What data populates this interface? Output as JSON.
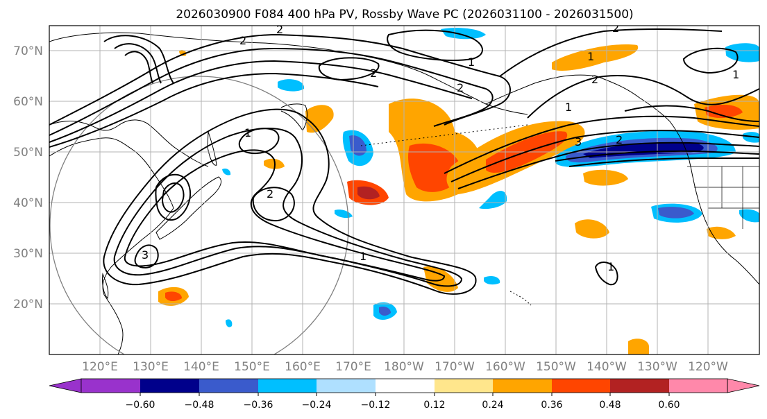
{
  "title": "2026030900 F084 400 hPa PV, Rossby Wave PC (2026031100 - 2026031500)",
  "lat_labels": [
    "70°N",
    "60°N",
    "50°N",
    "40°N",
    "30°N",
    "20°N"
  ],
  "lon_labels": [
    "120°E",
    "130°E",
    "140°E",
    "150°E",
    "160°E",
    "170°E",
    "180°W",
    "170°W",
    "160°W",
    "150°W",
    "140°W",
    "130°W",
    "120°W"
  ],
  "colorbar": {
    "ticks": [
      "−0.60",
      "−0.48",
      "−0.36",
      "−0.24",
      "−0.12",
      "0.12",
      "0.24",
      "0.36",
      "0.48",
      "0.60"
    ],
    "colors": [
      "#9932cc",
      "#00008b",
      "#3a5bcc",
      "#00bfff",
      "#afe0ff",
      "#ffffff",
      "#ffe68c",
      "#ffa500",
      "#ff4500",
      "#b22222",
      "#ff88aa"
    ]
  },
  "contour_labels": [
    "2",
    "2",
    "2",
    "2",
    "2",
    "1",
    "1",
    "2",
    "3",
    "1",
    "2",
    "1",
    "1",
    "3",
    "2",
    "1",
    "1"
  ],
  "chart_data": {
    "type": "contour-map",
    "title": "2026030900 F084 400 hPa PV, Rossby Wave PC (2026031100 - 2026031500)",
    "extent_lon": [
      110,
      250
    ],
    "extent_lat": [
      10,
      75
    ],
    "shading_levels": [
      -0.6,
      -0.48,
      -0.36,
      -0.24,
      -0.12,
      0.12,
      0.24,
      0.36,
      0.48,
      0.6
    ],
    "contour_levels": [
      1,
      2,
      3
    ]
  }
}
